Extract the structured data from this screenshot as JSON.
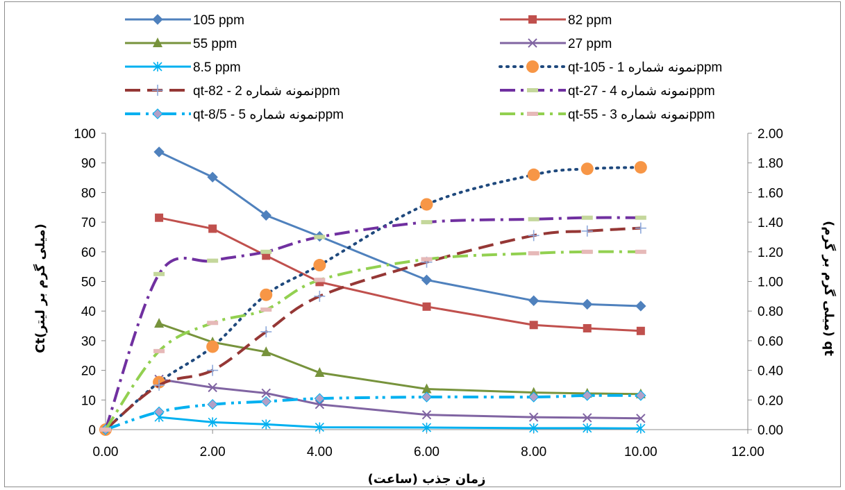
{
  "chart_data": {
    "type": "line",
    "title": "",
    "xlabel": "زمان جذب  (ساعت)",
    "ylabel_left": "(میلی گرم بر لیتر)Ct",
    "ylabel_right": "qt (میلی گرم بر گرم)",
    "xlim": [
      0,
      12
    ],
    "ylim_left": [
      0,
      100
    ],
    "ylim_right": [
      0,
      2
    ],
    "x_ticks": [
      "0.00",
      "2.00",
      "4.00",
      "6.00",
      "8.00",
      "10.00",
      "12.00"
    ],
    "y_left_ticks": [
      "0",
      "10",
      "20",
      "30",
      "40",
      "50",
      "60",
      "70",
      "80",
      "90",
      "100"
    ],
    "y_right_ticks": [
      "0.00",
      "0.20",
      "0.40",
      "0.60",
      "0.80",
      "1.00",
      "1.20",
      "1.40",
      "1.60",
      "1.80",
      "2.00"
    ],
    "grid": false,
    "legend_position": "top",
    "series": [
      {
        "name": "105 ppm",
        "axis": "left",
        "color": "#4F81BD",
        "style": "solid",
        "marker": "diamond",
        "x": [
          1,
          2,
          3,
          4,
          6,
          8,
          9,
          10
        ],
        "y": [
          93.7,
          85.2,
          72.3,
          65.2,
          50.5,
          43.5,
          42.3,
          41.7
        ]
      },
      {
        "name": "82 ppm",
        "axis": "left",
        "color": "#C0504D",
        "style": "solid",
        "marker": "square",
        "x": [
          1,
          2,
          3,
          4,
          6,
          8,
          9,
          10
        ],
        "y": [
          71.5,
          67.8,
          58.7,
          49.8,
          41.5,
          35.3,
          34.2,
          33.3
        ]
      },
      {
        "name": "55 ppm",
        "axis": "left",
        "color": "#77933C",
        "style": "solid",
        "marker": "triangle",
        "x": [
          1,
          2,
          3,
          4,
          6,
          8,
          9,
          10
        ],
        "y": [
          35.8,
          29.5,
          26.2,
          19.2,
          13.7,
          12.5,
          12.2,
          12.0
        ]
      },
      {
        "name": "27 ppm",
        "axis": "left",
        "color": "#8064A2",
        "style": "solid",
        "marker": "x",
        "x": [
          1,
          2,
          3,
          4,
          6,
          8,
          9,
          10
        ],
        "y": [
          17.0,
          14.2,
          12.3,
          8.5,
          5.0,
          4.2,
          4.0,
          3.8
        ]
      },
      {
        "name": "8.5 ppm",
        "axis": "left",
        "color": "#00B0F0",
        "style": "solid",
        "marker": "star",
        "x": [
          1,
          2,
          3,
          4,
          6,
          8,
          9,
          10
        ],
        "y": [
          4.2,
          2.5,
          1.8,
          0.8,
          0.7,
          0.5,
          0.5,
          0.4
        ]
      },
      {
        "name": "qt-105 - 1 نمونه شمارهppm",
        "axis": "right",
        "color": "#1F497D",
        "marker_color": "#F79646",
        "style": "dot",
        "marker": "circle",
        "x": [
          0,
          1,
          2,
          3,
          4,
          6,
          8,
          9,
          10
        ],
        "y": [
          0,
          0.32,
          0.56,
          0.91,
          1.11,
          1.52,
          1.72,
          1.76,
          1.77
        ]
      },
      {
        "name": "qt-82 - 2 نمونه شمارهppm",
        "axis": "right",
        "color": "#953735",
        "marker_color": "#8EA9DB",
        "style": "dash",
        "marker": "plus",
        "x": [
          0,
          1,
          2,
          3,
          4,
          6,
          8,
          9,
          10
        ],
        "y": [
          0,
          0.3,
          0.4,
          0.66,
          0.9,
          1.13,
          1.31,
          1.34,
          1.36
        ]
      },
      {
        "name": "qt-27 - 4 نمونه شمارهppm",
        "axis": "right",
        "color": "#7030A0",
        "marker_color": "#C4D79B",
        "style": "dashdot",
        "marker": "bar",
        "x": [
          0,
          1,
          2,
          3,
          4,
          6,
          8,
          9,
          10
        ],
        "y": [
          0,
          1.05,
          1.14,
          1.2,
          1.3,
          1.4,
          1.42,
          1.43,
          1.43
        ]
      },
      {
        "name": "qt-8/5 - 5 نمونه شمارهppm",
        "axis": "right",
        "color": "#00B0F0",
        "marker_color": "#B1A0C7",
        "style": "dashdotdot",
        "marker": "diamond",
        "x": [
          0,
          1,
          2,
          3,
          4,
          6,
          8,
          9,
          10
        ],
        "y": [
          0,
          0.12,
          0.17,
          0.19,
          0.21,
          0.22,
          0.22,
          0.23,
          0.23
        ]
      },
      {
        "name": "qt-55 - 3 نمونه شمارهppm",
        "axis": "right",
        "color": "#92D050",
        "marker_color": "#E6B9B8",
        "style": "dashdot",
        "marker": "bar",
        "x": [
          0,
          1,
          2,
          3,
          4,
          6,
          8,
          9,
          10
        ],
        "y": [
          0,
          0.53,
          0.72,
          0.81,
          1.01,
          1.15,
          1.19,
          1.2,
          1.2
        ]
      }
    ],
    "legend_entries": [
      "105 ppm",
      "82 ppm",
      "55 ppm",
      "27 ppm",
      "8.5 ppm",
      "qt-105 - 1 نمونه شمارهppm",
      "qt-82 - 2 نمونه شمارهppm",
      "qt-27 - 4 نمونه شمارهppm",
      "qt-8/5 - 5 نمونه شمارهppm",
      "qt-55 - 3 نمونه شمارهppm"
    ]
  }
}
